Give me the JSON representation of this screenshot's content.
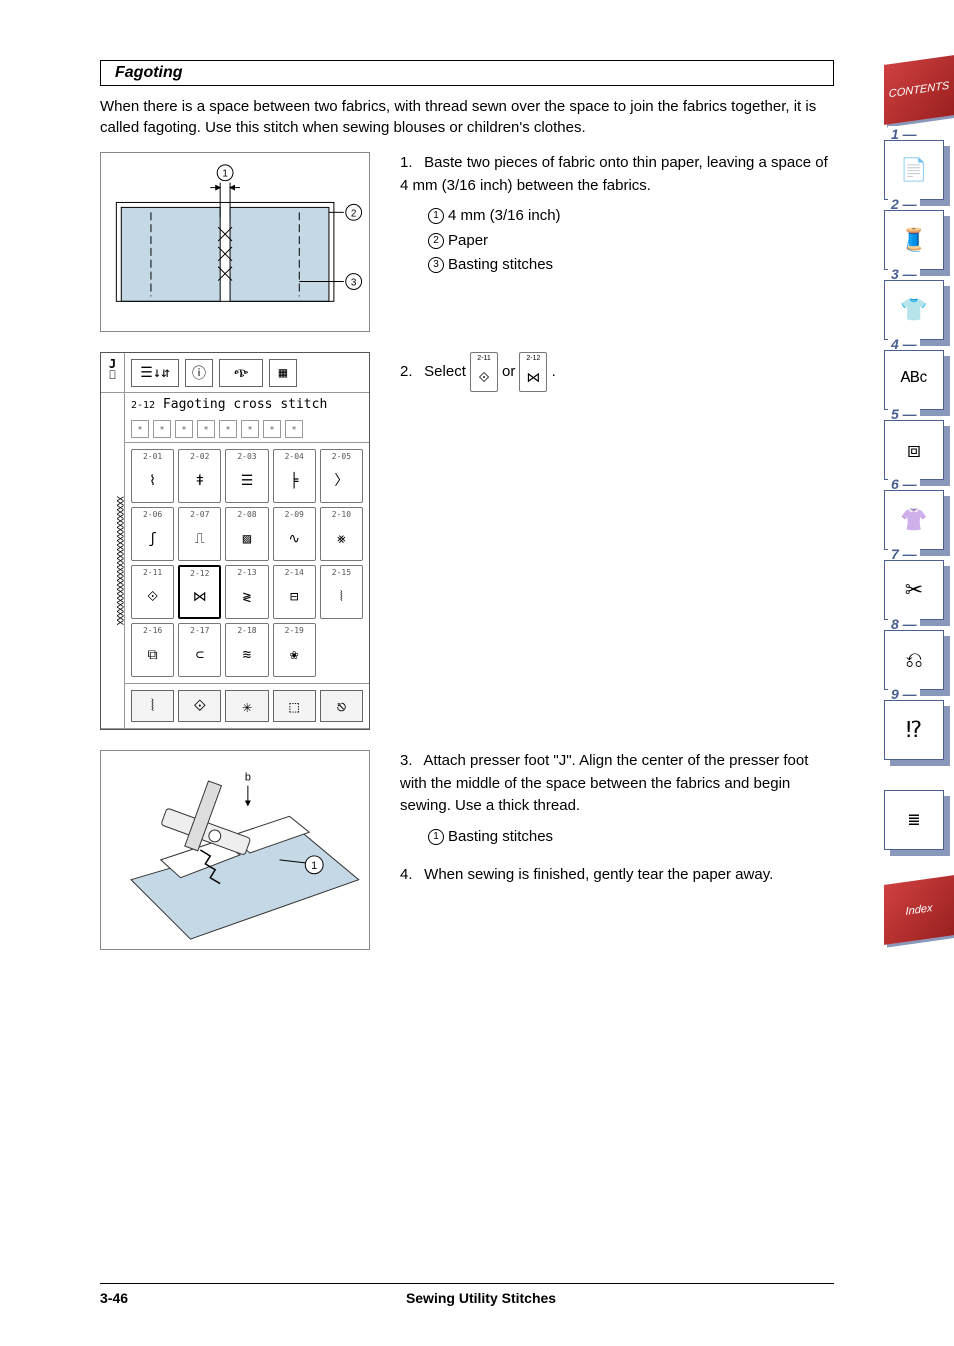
{
  "section": {
    "title": "Fagoting"
  },
  "intro": "When there is a space between two fabrics, with thread sewn over the space to join the fabrics together, it is called fagoting. Use this stitch when sewing blouses or children's clothes.",
  "step1": {
    "num": "1.",
    "text": "Baste two pieces of fabric onto thin paper, leaving a space of 4 mm (3/16 inch) between the fabrics.",
    "labels": {
      "l1": "4 mm (3/16 inch)",
      "l2": "Paper",
      "l3": "Basting stitches"
    }
  },
  "step2": {
    "num": "2.",
    "text_before": "Select",
    "text_mid": "or",
    "text_after": "."
  },
  "step3": {
    "num": "3.",
    "text": "Attach presser foot \"J\". Align the center of the presser foot with the middle of the space between the fabrics and begin sewing. Use a thick thread.",
    "labels": {
      "l1": "Basting stitches"
    }
  },
  "step4": {
    "num": "4.",
    "text": "When sewing is finished, gently tear the paper away."
  },
  "screen": {
    "foot_letter": "J",
    "title_num": "2-12",
    "title": "Fagoting cross stitch",
    "stitches": [
      {
        "n": "2-01",
        "g": "⌇"
      },
      {
        "n": "2-02",
        "g": "ǂ"
      },
      {
        "n": "2-03",
        "g": "☰"
      },
      {
        "n": "2-04",
        "g": "╞"
      },
      {
        "n": "2-05",
        "g": "〉"
      },
      {
        "n": "2-06",
        "g": "ʃ"
      },
      {
        "n": "2-07",
        "g": "⎍"
      },
      {
        "n": "2-08",
        "g": "▨"
      },
      {
        "n": "2-09",
        "g": "∿"
      },
      {
        "n": "2-10",
        "g": "⨳"
      },
      {
        "n": "2-11",
        "g": "⟐"
      },
      {
        "n": "2-12",
        "g": "⋈"
      },
      {
        "n": "2-13",
        "g": "≷"
      },
      {
        "n": "2-14",
        "g": "⊟"
      },
      {
        "n": "2-15",
        "g": "⦚"
      },
      {
        "n": "2-16",
        "g": "⧉"
      },
      {
        "n": "2-17",
        "g": "⊂"
      },
      {
        "n": "2-18",
        "g": "≋"
      },
      {
        "n": "2-19",
        "g": "❀"
      }
    ],
    "selected_index": 11,
    "select_a": {
      "n": "2-11",
      "g": "⟐"
    },
    "select_b": {
      "n": "2-12",
      "g": "⋈"
    }
  },
  "tabs": [
    {
      "num": "1 —",
      "icon": "📄"
    },
    {
      "num": "2 —",
      "icon": "🧵"
    },
    {
      "num": "3 —",
      "icon": "👕"
    },
    {
      "num": "4 —",
      "icon": "ᴬᴮᶜ"
    },
    {
      "num": "5 —",
      "icon": "⧈"
    },
    {
      "num": "6 —",
      "icon": "👚"
    },
    {
      "num": "7 —",
      "icon": "✂"
    },
    {
      "num": "8 —",
      "icon": "⎌"
    },
    {
      "num": "9 —",
      "icon": "⁉"
    }
  ],
  "banners": {
    "top": "CONTENTS",
    "bottom": "Index"
  },
  "footer": {
    "page": "3-46",
    "title": "Sewing Utility Stitches"
  },
  "colors": {
    "tab_border": "#4a5f8f",
    "tab_shadow": "#8a99bb",
    "banner_bg": "#b83030",
    "diagram_fill": "#c5d8e6"
  }
}
